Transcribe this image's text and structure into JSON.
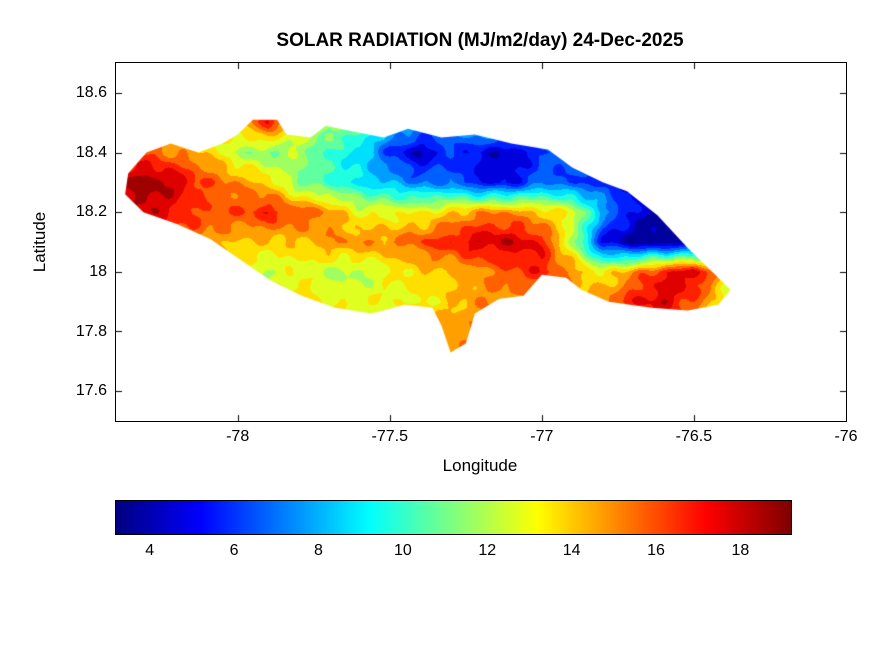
{
  "chart_data": {
    "type": "heatmap",
    "title": "SOLAR RADIATION (MJ/m2/day) 24-Dec-2025",
    "xlabel": "Longitude",
    "ylabel": "Latitude",
    "xlim": [
      -78.4,
      -76.0
    ],
    "ylim": [
      17.5,
      18.7
    ],
    "xticks": [
      -78,
      -77.5,
      -77,
      -76.5,
      -76
    ],
    "yticks": [
      17.6,
      17.8,
      18,
      18.2,
      18.4,
      18.6
    ],
    "colormap": "jet",
    "clim": [
      3.2,
      19.2
    ],
    "contour_step": 1,
    "legend_position": "horizontal-colorbar-bottom",
    "colorbar_ticks": [
      4,
      6,
      8,
      10,
      12,
      14,
      16,
      18
    ],
    "grid": {
      "lon": [
        -78.4,
        -78.3,
        -78.2,
        -78.1,
        -78.0,
        -77.9,
        -77.8,
        -77.7,
        -77.6,
        -77.5,
        -77.4,
        -77.3,
        -77.2,
        -77.1,
        -77.0,
        -76.9,
        -76.8,
        -76.7,
        -76.6,
        -76.5,
        -76.4,
        -76.3,
        -76.2
      ],
      "lat": [
        18.5,
        18.4,
        18.3,
        18.2,
        18.1,
        18.0,
        17.9,
        17.8,
        17.7
      ],
      "values_mj_m2_day": [
        [
          13,
          13,
          13,
          13,
          14,
          17,
          13,
          12,
          11,
          9,
          8,
          8,
          9,
          9,
          10,
          9,
          8,
          8,
          8,
          9,
          10,
          10,
          10
        ],
        [
          16,
          16,
          15,
          14,
          12,
          11,
          12,
          10,
          9,
          6,
          4,
          6,
          5,
          4,
          6,
          7,
          8,
          8,
          8,
          9,
          10,
          10,
          10
        ],
        [
          18,
          19,
          18,
          16,
          15,
          14,
          11,
          10,
          9,
          8,
          7,
          7,
          5,
          5,
          7,
          6,
          6,
          5,
          5,
          5,
          7,
          9,
          10
        ],
        [
          17,
          18,
          17,
          16,
          16,
          17,
          16,
          15,
          13,
          13,
          13,
          14,
          15,
          15,
          14,
          13,
          8,
          5,
          4,
          4,
          6,
          8,
          10
        ],
        [
          16,
          16,
          16,
          15,
          14,
          14,
          14,
          15,
          15,
          15,
          16,
          17,
          18,
          18,
          17,
          12,
          5,
          3.5,
          3.5,
          4,
          8,
          10,
          11
        ],
        [
          14,
          14,
          14,
          14,
          13,
          12,
          13,
          12,
          12,
          13,
          14,
          14,
          15,
          16,
          17,
          15,
          13,
          15,
          17,
          18,
          14,
          11,
          10
        ],
        [
          14,
          14,
          14,
          14,
          14,
          14,
          14,
          13,
          13,
          13,
          13,
          14,
          15,
          15,
          14,
          14,
          15,
          17,
          18,
          16,
          13,
          11,
          10
        ],
        [
          13,
          13,
          13,
          13,
          13,
          13,
          13,
          13,
          13,
          13,
          14,
          15,
          15,
          15,
          14,
          14,
          14,
          15,
          15,
          14,
          12,
          11,
          10
        ],
        [
          13,
          13,
          13,
          13,
          13,
          13,
          13,
          13,
          13,
          14,
          15,
          15,
          14,
          14,
          14,
          14,
          14,
          14,
          13,
          13,
          12,
          11,
          10
        ]
      ]
    },
    "island_outline_lonlat": [
      [
        -78.37,
        18.26
      ],
      [
        -78.36,
        18.33
      ],
      [
        -78.3,
        18.4
      ],
      [
        -78.22,
        18.43
      ],
      [
        -78.13,
        18.4
      ],
      [
        -78.05,
        18.43
      ],
      [
        -78.0,
        18.46
      ],
      [
        -77.95,
        18.51
      ],
      [
        -77.87,
        18.51
      ],
      [
        -77.84,
        18.46
      ],
      [
        -77.76,
        18.45
      ],
      [
        -77.71,
        18.49
      ],
      [
        -77.62,
        18.47
      ],
      [
        -77.52,
        18.45
      ],
      [
        -77.44,
        18.48
      ],
      [
        -77.33,
        18.45
      ],
      [
        -77.22,
        18.46
      ],
      [
        -77.1,
        18.43
      ],
      [
        -76.98,
        18.41
      ],
      [
        -76.9,
        18.35
      ],
      [
        -76.8,
        18.3
      ],
      [
        -76.72,
        18.27
      ],
      [
        -76.62,
        18.19
      ],
      [
        -76.52,
        18.08
      ],
      [
        -76.43,
        17.99
      ],
      [
        -76.38,
        17.94
      ],
      [
        -76.42,
        17.89
      ],
      [
        -76.52,
        17.87
      ],
      [
        -76.64,
        17.88
      ],
      [
        -76.78,
        17.9
      ],
      [
        -76.87,
        17.94
      ],
      [
        -76.92,
        17.98
      ],
      [
        -77.0,
        17.99
      ],
      [
        -77.06,
        17.92
      ],
      [
        -77.14,
        17.91
      ],
      [
        -77.22,
        17.86
      ],
      [
        -77.25,
        17.76
      ],
      [
        -77.3,
        17.73
      ],
      [
        -77.33,
        17.82
      ],
      [
        -77.36,
        17.88
      ],
      [
        -77.45,
        17.89
      ],
      [
        -77.56,
        17.86
      ],
      [
        -77.68,
        17.88
      ],
      [
        -77.79,
        17.92
      ],
      [
        -77.89,
        17.97
      ],
      [
        -77.99,
        18.04
      ],
      [
        -78.09,
        18.11
      ],
      [
        -78.2,
        18.16
      ],
      [
        -78.31,
        18.2
      ]
    ],
    "colors": {
      "axis": "#000000",
      "background": "#ffffff"
    }
  }
}
